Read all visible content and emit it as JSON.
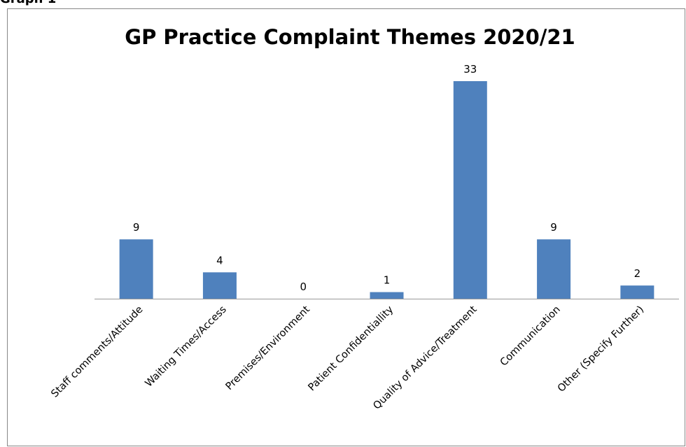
{
  "caption": "Graph 1",
  "chart_data": {
    "type": "bar",
    "title": "GP Practice Complaint Themes 2020/21",
    "categories": [
      "Staff comments/Attitude",
      "Waiting Times/Access",
      "Premises/Environment",
      "Patient Confidentiallity",
      "Quality of Advice/Treatment",
      "Communication",
      "Other (Specify Further)"
    ],
    "values": [
      9,
      4,
      0,
      1,
      33,
      9,
      2
    ],
    "color": "#4f81bd",
    "data_labels": true
  }
}
